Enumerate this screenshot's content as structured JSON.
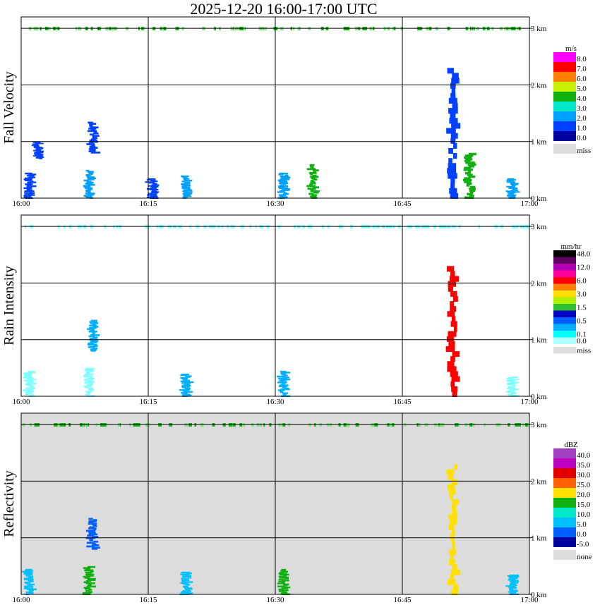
{
  "title": "2025-12-20   16:00-17:00 UTC",
  "colors": {
    "gray_bg": "#dcdcdc",
    "grid": "#000000"
  },
  "chart_data": [
    {
      "type": "heatmap",
      "panel": "fall_velocity",
      "ylabel": "Fall Velocity",
      "x_ticks": [
        "16:00",
        "16:15",
        "16:30",
        "16:45",
        "17:00"
      ],
      "y_ticks": [
        "0 km",
        "1 km",
        "2 km",
        "3 km"
      ],
      "xlim": [
        "16:00",
        "17:00"
      ],
      "ylim_km": [
        0,
        3.2
      ],
      "background": "white",
      "legend": {
        "unit": "m/s",
        "entries": [
          {
            "label": "8.0",
            "color": "#ff00ff"
          },
          {
            "label": "7.0",
            "color": "#ff0000"
          },
          {
            "label": "6.0",
            "color": "#ff8000"
          },
          {
            "label": "5.0",
            "color": "#c8f000"
          },
          {
            "label": "4.0",
            "color": "#10b010"
          },
          {
            "label": "3.0",
            "color": "#00e8c8"
          },
          {
            "label": "2.0",
            "color": "#00a0ff"
          },
          {
            "label": "1.0",
            "color": "#0040ff"
          },
          {
            "label": "0.0",
            "color": "#0000a0"
          },
          {
            "label": "miss",
            "color": "#dcdcdc"
          }
        ]
      },
      "features": [
        {
          "t": 1,
          "h0": 0.0,
          "h1": 0.45,
          "color": "#0040ff"
        },
        {
          "t": 2,
          "h0": 0.7,
          "h1": 1.0,
          "color": "#0040ff"
        },
        {
          "t": 8,
          "h0": 0.0,
          "h1": 0.5,
          "color": "#00a0ff"
        },
        {
          "t": 8.5,
          "h0": 0.8,
          "h1": 1.35,
          "color": "#0040ff"
        },
        {
          "t": 15.5,
          "h0": 0.0,
          "h1": 0.35,
          "color": "#0040ff"
        },
        {
          "t": 19.5,
          "h0": 0.0,
          "h1": 0.4,
          "color": "#00a0ff"
        },
        {
          "t": 31,
          "h0": 0.0,
          "h1": 0.45,
          "color": "#00a0ff"
        },
        {
          "t": 34.5,
          "h0": 0.0,
          "h1": 0.6,
          "color": "#10b010"
        },
        {
          "t": 51,
          "h0": 0.0,
          "h1": 2.3,
          "color": "#0040ff"
        },
        {
          "t": 53,
          "h0": 0.0,
          "h1": 0.8,
          "color": "#10b010"
        },
        {
          "t": 58,
          "h0": 0.0,
          "h1": 0.35,
          "color": "#00a0ff"
        }
      ]
    },
    {
      "type": "heatmap",
      "panel": "rain_intensity",
      "ylabel": "Rain Intensity",
      "x_ticks": [
        "16:00",
        "16:15",
        "16:30",
        "16:45",
        "17:00"
      ],
      "y_ticks": [
        "0 km",
        "1 km",
        "2 km",
        "3 km"
      ],
      "xlim": [
        "16:00",
        "17:00"
      ],
      "ylim_km": [
        0,
        3.2
      ],
      "background": "white",
      "legend": {
        "unit": "mm/hr",
        "entries": [
          {
            "label": "48.0",
            "color": "#000000"
          },
          {
            "label": "",
            "color": "#600060"
          },
          {
            "label": "12.0",
            "color": "#b000b0"
          },
          {
            "label": "",
            "color": "#ff00a0"
          },
          {
            "label": "6.0",
            "color": "#ff0000"
          },
          {
            "label": "",
            "color": "#ff8000"
          },
          {
            "label": "3.0",
            "color": "#ffe000"
          },
          {
            "label": "",
            "color": "#b0f000"
          },
          {
            "label": "1.5",
            "color": "#30c030"
          },
          {
            "label": "",
            "color": "#0000c0"
          },
          {
            "label": "0.5",
            "color": "#0060ff"
          },
          {
            "label": "",
            "color": "#00b0ff"
          },
          {
            "label": "0.1",
            "color": "#00ffff"
          },
          {
            "label": "0.0",
            "color": "#b0ffff"
          },
          {
            "label": "miss",
            "color": "#dcdcdc"
          }
        ]
      },
      "features": [
        {
          "t": 1,
          "h0": 0.0,
          "h1": 0.45,
          "color": "#80ffff"
        },
        {
          "t": 8.5,
          "h0": 0.8,
          "h1": 1.35,
          "color": "#00b0ff"
        },
        {
          "t": 8,
          "h0": 0.0,
          "h1": 0.5,
          "color": "#80ffff"
        },
        {
          "t": 19.5,
          "h0": 0.0,
          "h1": 0.4,
          "color": "#00b0ff"
        },
        {
          "t": 31,
          "h0": 0.0,
          "h1": 0.45,
          "color": "#00b0ff"
        },
        {
          "t": 51,
          "h0": 0.0,
          "h1": 2.3,
          "color": "#ff0000"
        },
        {
          "t": 58,
          "h0": 0.0,
          "h1": 0.35,
          "color": "#80ffff"
        }
      ]
    },
    {
      "type": "heatmap",
      "panel": "reflectivity",
      "ylabel": "Reflectivity",
      "x_ticks": [
        "16:00",
        "16:15",
        "16:30",
        "16:45",
        "17:00"
      ],
      "y_ticks": [
        "0 km",
        "1 km",
        "2 km",
        "3 km"
      ],
      "xlim": [
        "16:00",
        "17:00"
      ],
      "ylim_km": [
        0,
        3.2
      ],
      "background": "gray",
      "legend": {
        "unit": "dBZ",
        "entries": [
          {
            "label": "40.0",
            "color": "#a040c0"
          },
          {
            "label": "35.0",
            "color": "#c000c0"
          },
          {
            "label": "30.0",
            "color": "#e00000"
          },
          {
            "label": "25.0",
            "color": "#ff6000"
          },
          {
            "label": "20.0",
            "color": "#ffe000"
          },
          {
            "label": "15.0",
            "color": "#10b010"
          },
          {
            "label": "10.0",
            "color": "#00e8c8"
          },
          {
            "label": "5.0",
            "color": "#00c0ff"
          },
          {
            "label": "0.0",
            "color": "#0060ff"
          },
          {
            "label": "-5.0",
            "color": "#0000a0"
          },
          {
            "label": "none",
            "color": "#dcdcdc"
          }
        ]
      },
      "features": [
        {
          "t": 1,
          "h0": 0.0,
          "h1": 0.45,
          "color": "#00c0ff"
        },
        {
          "t": 8.5,
          "h0": 0.8,
          "h1": 1.35,
          "color": "#0060ff"
        },
        {
          "t": 8,
          "h0": 0.0,
          "h1": 0.5,
          "color": "#10b010"
        },
        {
          "t": 19.5,
          "h0": 0.0,
          "h1": 0.4,
          "color": "#00c0ff"
        },
        {
          "t": 31,
          "h0": 0.0,
          "h1": 0.45,
          "color": "#10b010"
        },
        {
          "t": 51,
          "h0": 0.0,
          "h1": 2.3,
          "color": "#ffe000"
        },
        {
          "t": 58,
          "h0": 0.0,
          "h1": 0.35,
          "color": "#00c0ff"
        }
      ]
    }
  ]
}
